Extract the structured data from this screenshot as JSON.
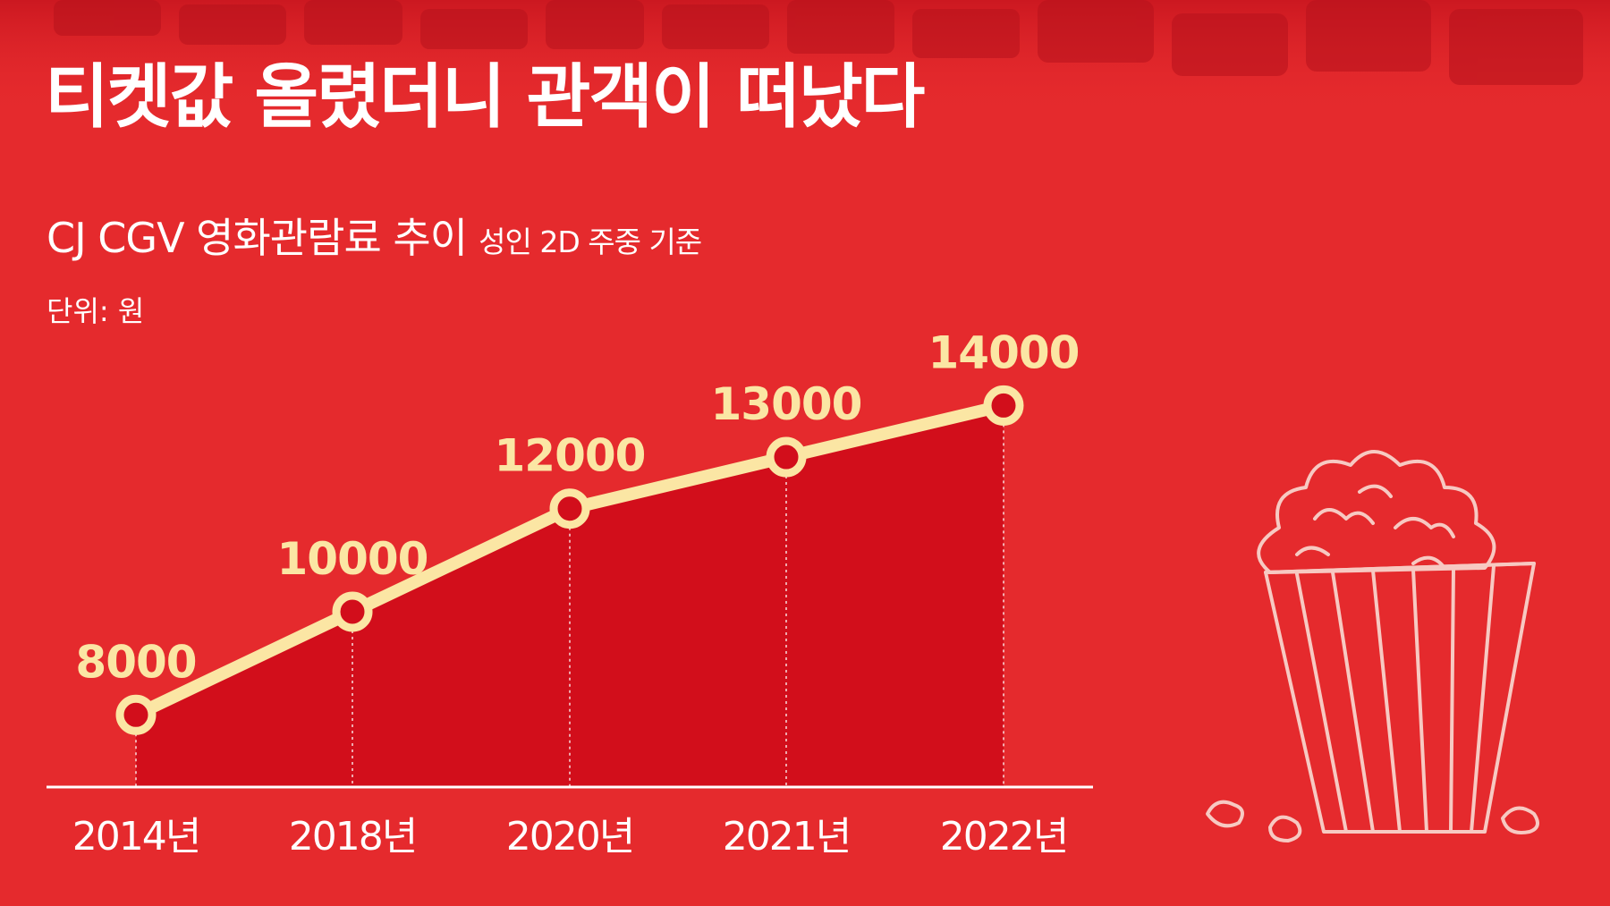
{
  "headline": "티켓값 올렸더니 관객이 떠났다",
  "subtitle": "CJ CGV 영화관람료 추이",
  "subtitle_note": "성인 2D 주중 기준",
  "unit_label": "단위: 원",
  "chart_data": {
    "type": "area",
    "title": "CJ CGV 영화관람료 추이",
    "subtitle": "성인 2D 주중 기준",
    "ylabel": "단위: 원",
    "categories": [
      "2014년",
      "2018년",
      "2020년",
      "2021년",
      "2022년"
    ],
    "values": [
      8000,
      10000,
      12000,
      13000,
      14000
    ],
    "data_labels": [
      "8000",
      "10000",
      "12000",
      "13000",
      "14000"
    ],
    "ylim": [
      6600,
      15100
    ],
    "grid": false,
    "legend": "none",
    "colors": {
      "line": "#fbe6a4",
      "area": "#d20e1b",
      "background": "#e52a2d",
      "axis": "#ffffff",
      "label": "#fbe6a4"
    }
  },
  "decorations": [
    "theater-seats-image",
    "popcorn-bucket-illustration"
  ]
}
